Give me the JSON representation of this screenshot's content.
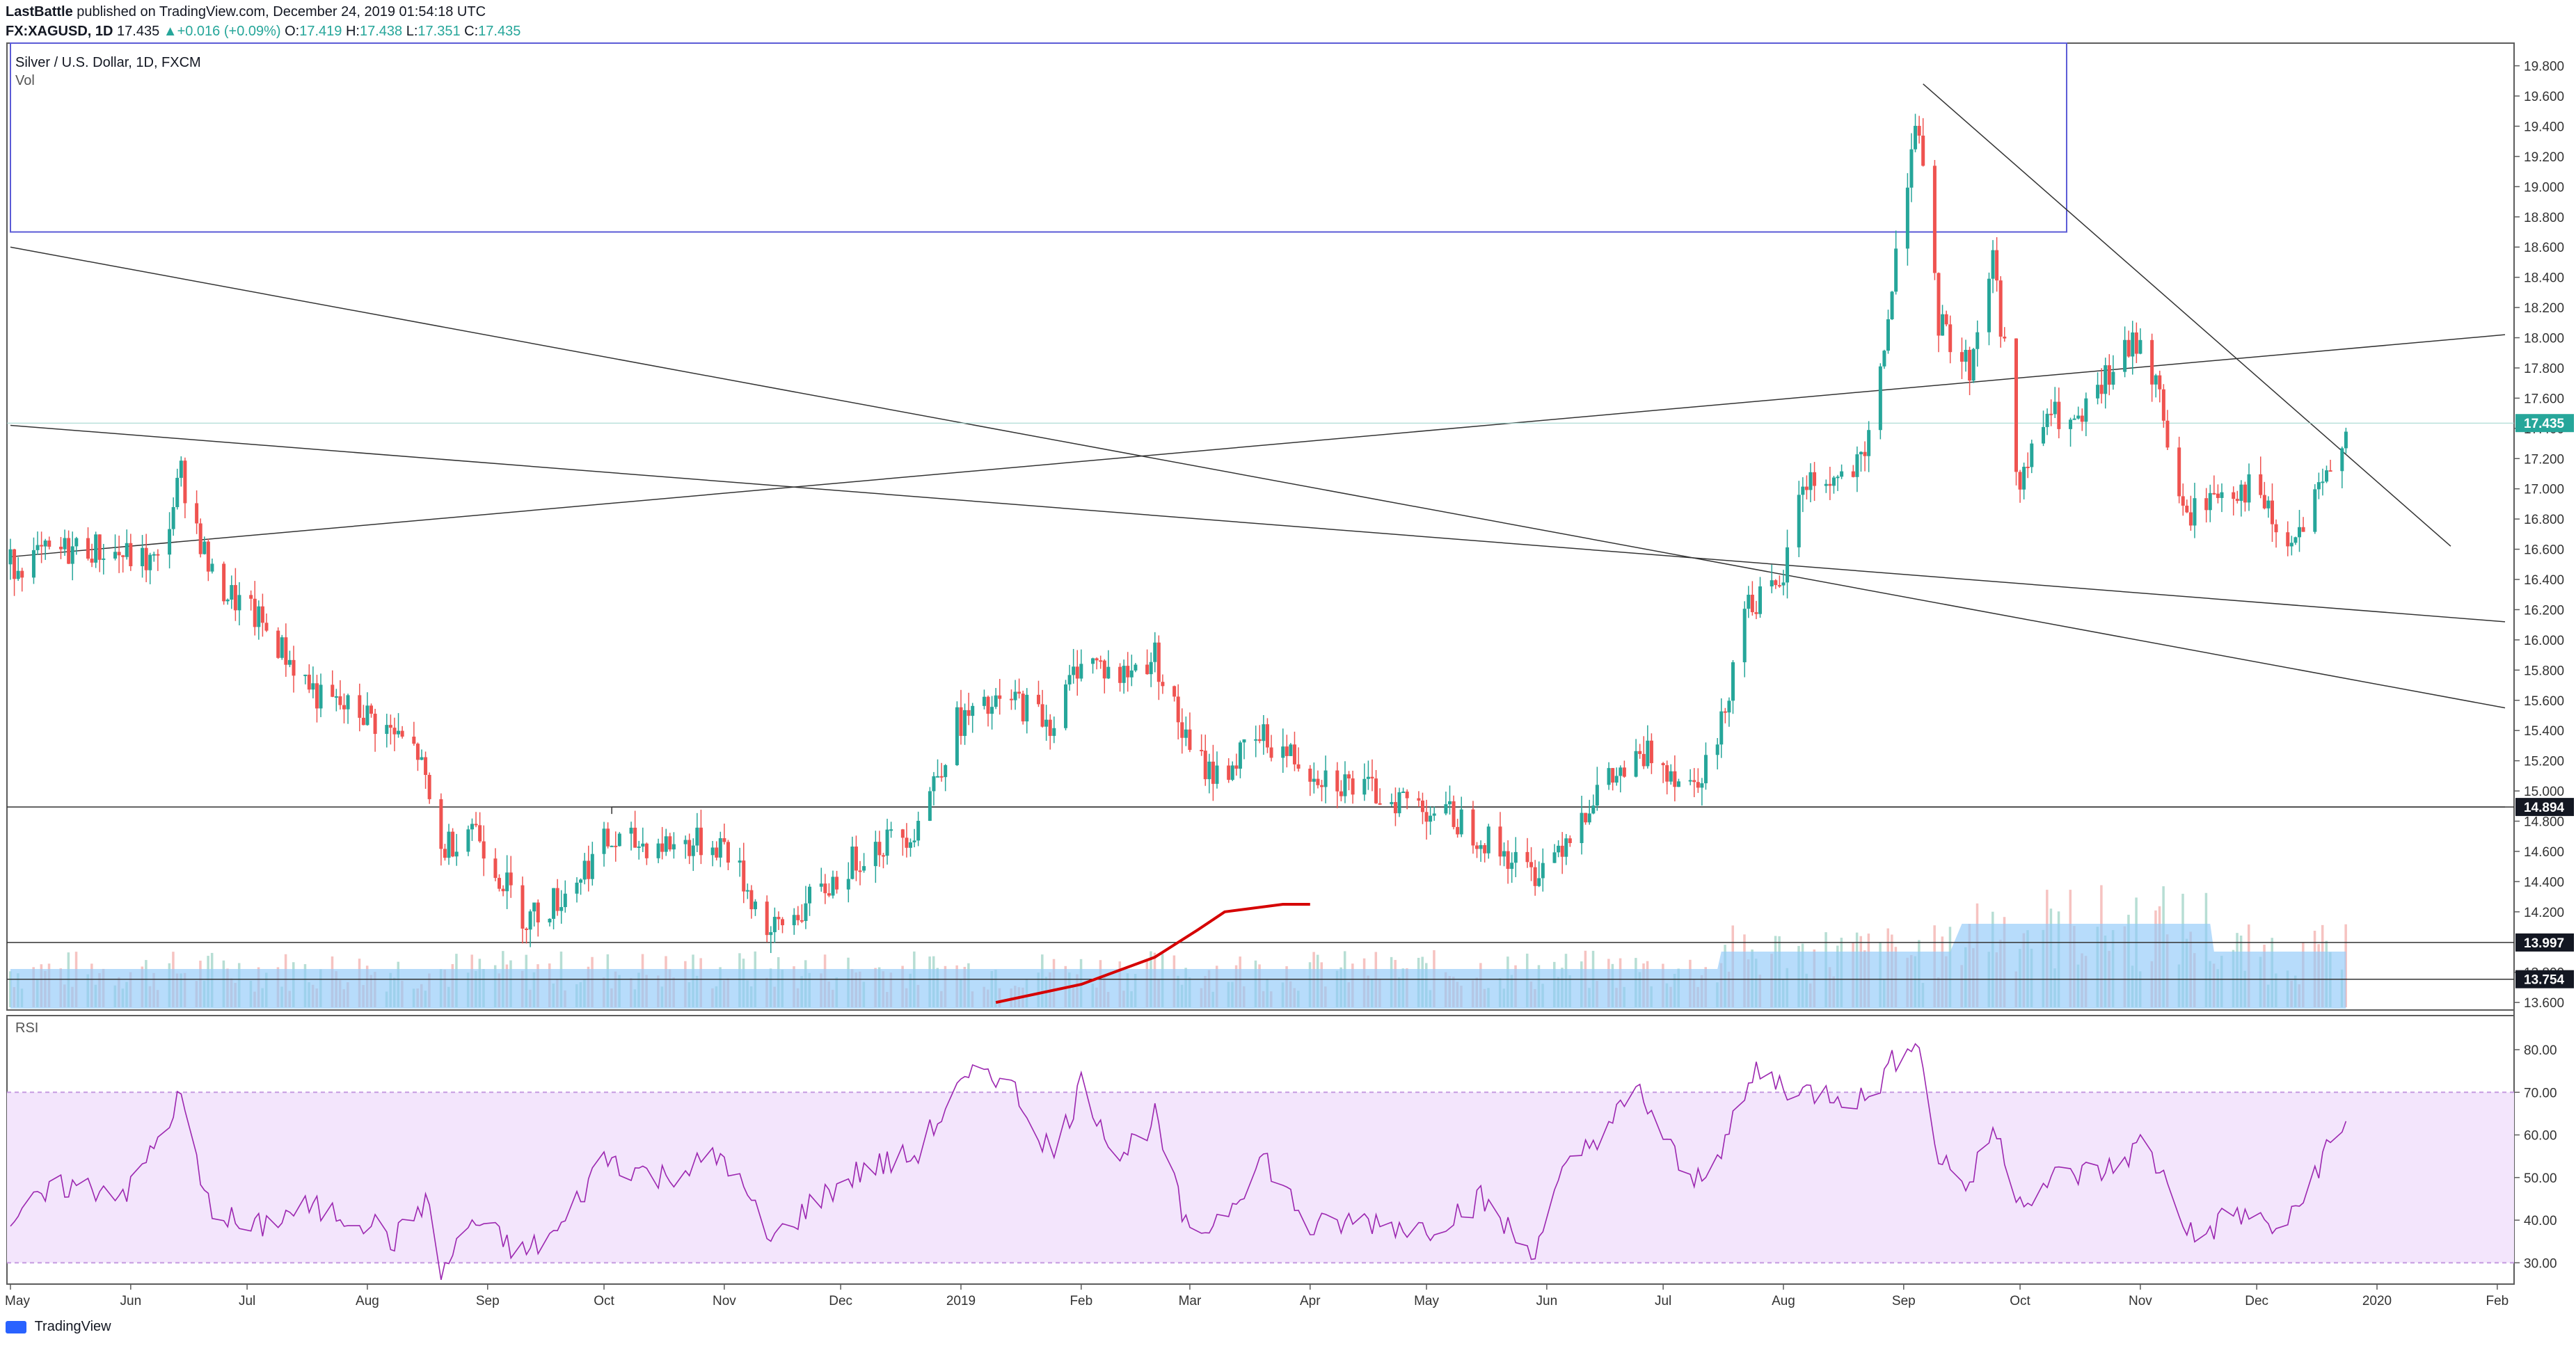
{
  "header": {
    "author": "LastBattle",
    "published_text": "published on TradingView.com, December 24, 2019 01:54:18 UTC",
    "symbol": "FX:XAGUSD, 1D",
    "last": "17.435",
    "change": "+0.016 (+0.09%)",
    "o_label": "O:",
    "o_value": "17.419",
    "h_label": "H:",
    "h_value": "17.438",
    "l_label": "L:",
    "l_value": "17.351",
    "c_label": "C:",
    "c_value": "17.435"
  },
  "legend": {
    "title": "Silver / U.S. Dollar, 1D, FXCM",
    "volume_label": "Vol",
    "rsi_label": "RSI"
  },
  "footer": {
    "brand": "TradingView"
  },
  "colors": {
    "up": "#26a69a",
    "down": "#ef5350",
    "rsi": "#9c27b0",
    "rsi_band": "#f3e5fc",
    "volume_area": "#90caf9",
    "box": "#5b5bd6",
    "annotation": "#d50000",
    "price_tag": "#26a69a"
  },
  "chart_data": [
    {
      "type": "candlestick",
      "title": "Silver / U.S. Dollar, 1D, FXCM",
      "ylim": [
        13.55,
        19.95
      ],
      "y_ticks": [
        "19.800",
        "19.600",
        "19.400",
        "19.200",
        "19.000",
        "18.800",
        "18.600",
        "18.400",
        "18.200",
        "18.000",
        "17.800",
        "17.600",
        "17.400",
        "17.200",
        "17.000",
        "16.800",
        "16.600",
        "16.400",
        "16.200",
        "16.000",
        "15.800",
        "15.600",
        "15.400",
        "15.200",
        "15.000",
        "14.800",
        "14.600",
        "14.400",
        "14.200",
        "13.800",
        "13.600"
      ],
      "x_ticks": [
        "May",
        "Jun",
        "Jul",
        "Aug",
        "Sep",
        "Oct",
        "Nov",
        "Dec",
        "2019",
        "Feb",
        "Mar",
        "Apr",
        "May",
        "Jun",
        "Jul",
        "Aug",
        "Sep",
        "Oct",
        "Nov",
        "Dec",
        "2020",
        "Feb"
      ],
      "price_labels": {
        "last": "17.435",
        "level_1": "14.894",
        "level_2": "13.997",
        "level_3": "13.754"
      },
      "horizontal_levels": [
        17.435,
        14.894,
        13.997,
        13.754
      ],
      "price_anchors": [
        [
          "2018-05-01",
          16.5
        ],
        [
          "2018-05-20",
          16.62
        ],
        [
          "2018-06-08",
          16.5
        ],
        [
          "2018-06-14",
          17.1
        ],
        [
          "2018-06-22",
          16.4
        ],
        [
          "2018-07-05",
          16.1
        ],
        [
          "2018-07-20",
          15.6
        ],
        [
          "2018-08-01",
          15.5
        ],
        [
          "2018-08-14",
          15.25
        ],
        [
          "2018-08-20",
          14.6
        ],
        [
          "2018-08-28",
          14.8
        ],
        [
          "2018-09-04",
          14.45
        ],
        [
          "2018-09-11",
          14.15
        ],
        [
          "2018-09-20",
          14.3
        ],
        [
          "2018-10-01",
          14.65
        ],
        [
          "2018-10-15",
          14.65
        ],
        [
          "2018-11-01",
          14.65
        ],
        [
          "2018-11-13",
          14.05
        ],
        [
          "2018-11-25",
          14.3
        ],
        [
          "2018-12-07",
          14.6
        ],
        [
          "2018-12-20",
          14.75
        ],
        [
          "2018-12-31",
          15.45
        ],
        [
          "2019-01-15",
          15.6
        ],
        [
          "2019-01-25",
          15.45
        ],
        [
          "2019-02-01",
          15.9
        ],
        [
          "2019-02-11",
          15.75
        ],
        [
          "2019-02-20",
          15.9
        ],
        [
          "2019-03-01",
          15.25
        ],
        [
          "2019-03-08",
          15.1
        ],
        [
          "2019-03-20",
          15.35
        ],
        [
          "2019-04-01",
          15.15
        ],
        [
          "2019-04-15",
          15.0
        ],
        [
          "2019-04-25",
          14.95
        ],
        [
          "2019-05-10",
          14.8
        ],
        [
          "2019-05-28",
          14.45
        ],
        [
          "2019-06-03",
          14.6
        ],
        [
          "2019-06-14",
          15.0
        ],
        [
          "2019-06-28",
          15.25
        ],
        [
          "2019-07-08",
          15.05
        ],
        [
          "2019-07-15",
          15.3
        ],
        [
          "2019-07-22",
          16.25
        ],
        [
          "2019-07-31",
          16.3
        ],
        [
          "2019-08-06",
          17.05
        ],
        [
          "2019-08-14",
          17.05
        ],
        [
          "2019-08-22",
          17.15
        ],
        [
          "2019-08-29",
          18.3
        ],
        [
          "2019-09-04",
          19.5
        ],
        [
          "2019-09-10",
          18.1
        ],
        [
          "2019-09-18",
          17.8
        ],
        [
          "2019-09-24",
          18.55
        ],
        [
          "2019-10-01",
          17.0
        ],
        [
          "2019-10-08",
          17.5
        ],
        [
          "2019-10-16",
          17.4
        ],
        [
          "2019-10-25",
          17.8
        ],
        [
          "2019-11-01",
          18.0
        ],
        [
          "2019-11-06",
          17.6
        ],
        [
          "2019-11-12",
          16.8
        ],
        [
          "2019-11-22",
          17.0
        ],
        [
          "2019-12-01",
          17.0
        ],
        [
          "2019-12-06",
          16.7
        ],
        [
          "2019-12-10",
          16.6
        ],
        [
          "2019-12-18",
          17.0
        ],
        [
          "2019-12-24",
          17.435
        ]
      ],
      "annotations": {
        "trend_lines": [
          {
            "from": [
              "2018-05-01",
              18.6
            ],
            "to": [
              "2020-02-03",
              15.55
            ]
          },
          {
            "from": [
              "2018-05-01",
              17.42
            ],
            "to": [
              "2020-02-03",
              16.12
            ]
          },
          {
            "from": [
              "2018-05-01",
              16.55
            ],
            "to": [
              "2020-02-03",
              18.02
            ]
          },
          {
            "from": [
              "2019-09-06",
              19.68
            ],
            "to": [
              "2020-01-20",
              16.62
            ]
          }
        ],
        "box": {
          "from": [
            "2018-05-01",
            18.7
          ],
          "to": [
            "2019-10-13",
            19.95
          ]
        },
        "bracket": {
          "x_from": "2018-10-03",
          "x_to": "2020-02-03",
          "y": 14.894
        },
        "curve_points": [
          [
            "2019-01-10",
            13.6
          ],
          [
            "2019-02-01",
            13.72
          ],
          [
            "2019-02-20",
            13.9
          ],
          [
            "2019-03-03",
            14.08
          ],
          [
            "2019-03-10",
            14.2
          ],
          [
            "2019-03-25",
            14.25
          ],
          [
            "2019-04-01",
            14.25
          ]
        ]
      }
    },
    {
      "type": "area",
      "title": "Vol",
      "note": "volume histogram with moving-average area, no numeric scale shown"
    },
    {
      "type": "line",
      "title": "RSI",
      "ylim": [
        25,
        88
      ],
      "y_ticks": [
        "80.00",
        "70.00",
        "60.00",
        "50.00",
        "40.00",
        "30.00"
      ],
      "bands": [
        30,
        70
      ],
      "anchors": [
        [
          "2018-05-01",
          40
        ],
        [
          "2018-05-15",
          48
        ],
        [
          "2018-06-01",
          47
        ],
        [
          "2018-06-14",
          69
        ],
        [
          "2018-06-20",
          45
        ],
        [
          "2018-07-01",
          37
        ],
        [
          "2018-07-15",
          43
        ],
        [
          "2018-08-01",
          40
        ],
        [
          "2018-08-08",
          35
        ],
        [
          "2018-08-16",
          45
        ],
        [
          "2018-08-20",
          27
        ],
        [
          "2018-08-28",
          40
        ],
        [
          "2018-09-10",
          32
        ],
        [
          "2018-09-20",
          38
        ],
        [
          "2018-10-01",
          55
        ],
        [
          "2018-10-15",
          50
        ],
        [
          "2018-11-01",
          55
        ],
        [
          "2018-11-13",
          35
        ],
        [
          "2018-11-25",
          45
        ],
        [
          "2018-12-07",
          52
        ],
        [
          "2018-12-20",
          55
        ],
        [
          "2018-12-31",
          70
        ],
        [
          "2019-01-08",
          76
        ],
        [
          "2019-01-15",
          70
        ],
        [
          "2019-01-25",
          55
        ],
        [
          "2019-02-01",
          72
        ],
        [
          "2019-02-11",
          55
        ],
        [
          "2019-02-20",
          64
        ],
        [
          "2019-03-01",
          35
        ],
        [
          "2019-03-10",
          42
        ],
        [
          "2019-03-20",
          55
        ],
        [
          "2019-04-01",
          38
        ],
        [
          "2019-04-15",
          40
        ],
        [
          "2019-05-01",
          38
        ],
        [
          "2019-05-15",
          45
        ],
        [
          "2019-05-28",
          32
        ],
        [
          "2019-06-05",
          50
        ],
        [
          "2019-06-14",
          60
        ],
        [
          "2019-06-25",
          70
        ],
        [
          "2019-07-08",
          48
        ],
        [
          "2019-07-18",
          60
        ],
        [
          "2019-07-25",
          75
        ],
        [
          "2019-08-05",
          70
        ],
        [
          "2019-08-14",
          70
        ],
        [
          "2019-08-22",
          68
        ],
        [
          "2019-09-04",
          84
        ],
        [
          "2019-09-10",
          55
        ],
        [
          "2019-09-18",
          48
        ],
        [
          "2019-09-24",
          62
        ],
        [
          "2019-10-01",
          45
        ],
        [
          "2019-10-10",
          50
        ],
        [
          "2019-10-25",
          52
        ],
        [
          "2019-11-01",
          58
        ],
        [
          "2019-11-06",
          52
        ],
        [
          "2019-11-15",
          35
        ],
        [
          "2019-11-25",
          42
        ],
        [
          "2019-12-06",
          38
        ],
        [
          "2019-12-10",
          40
        ],
        [
          "2019-12-18",
          55
        ],
        [
          "2019-12-24",
          62
        ]
      ]
    }
  ]
}
